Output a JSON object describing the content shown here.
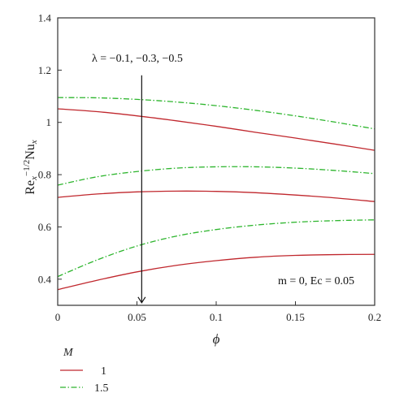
{
  "chart_data": {
    "type": "line",
    "xlim": [
      0,
      0.2
    ],
    "ylim": [
      0.3,
      1.4
    ],
    "x_ticks": [
      "0",
      "0.05",
      "0.1",
      "0.15",
      "0.2"
    ],
    "y_ticks": [
      "1.4",
      "1.2",
      "1",
      "0.8",
      "0.6",
      "0.4"
    ],
    "y_tick_values": [
      1.4,
      1.2,
      1.0,
      0.8,
      0.6,
      0.4
    ],
    "x_tick_values": [
      0,
      0.05,
      0.1,
      0.15,
      0.2
    ],
    "xlabel": "ϕ",
    "ylabel": "Re_x^(−1/2) Nu_x",
    "ylabel_parts": {
      "re": "Re",
      "re_sub": "x",
      "sup": "−1/2",
      "nu": "Nu",
      "nu_sub": "x"
    },
    "legend": {
      "title": "M",
      "placement": "bottom-left",
      "entries": [
        "1",
        "1.5"
      ]
    },
    "colors": {
      "M1": "#c0272d",
      "M15": "#2db52d",
      "arrow": "#111111",
      "axes": "#333333"
    },
    "annotations": {
      "lambda": "λ = −0.1, −0.3, −0.5",
      "params": "m = 0, Ec = 0.05",
      "arrow_x": 0.053,
      "arrow_y_from": 1.18,
      "arrow_y_to": 0.31
    },
    "series": [
      {
        "group": "1",
        "lambda": "-0.1",
        "style": "solid",
        "x": [
          0,
          0.025,
          0.05,
          0.075,
          0.1,
          0.125,
          0.15,
          0.175,
          0.2
        ],
        "y": [
          1.052,
          1.041,
          1.025,
          1.006,
          0.985,
          0.962,
          0.94,
          0.917,
          0.893
        ]
      },
      {
        "group": "1",
        "lambda": "-0.3",
        "style": "solid",
        "x": [
          0,
          0.025,
          0.05,
          0.075,
          0.1,
          0.125,
          0.15,
          0.175,
          0.2
        ],
        "y": [
          0.713,
          0.726,
          0.734,
          0.737,
          0.736,
          0.731,
          0.722,
          0.711,
          0.697
        ]
      },
      {
        "group": "1",
        "lambda": "-0.5",
        "style": "solid",
        "x": [
          0,
          0.025,
          0.05,
          0.075,
          0.1,
          0.125,
          0.15,
          0.175,
          0.2
        ],
        "y": [
          0.36,
          0.396,
          0.428,
          0.453,
          0.471,
          0.484,
          0.491,
          0.494,
          0.495
        ]
      },
      {
        "group": "1.5",
        "lambda": "-0.1",
        "style": "dashdot",
        "x": [
          0,
          0.025,
          0.05,
          0.075,
          0.1,
          0.125,
          0.15,
          0.175,
          0.2
        ],
        "y": [
          1.095,
          1.094,
          1.088,
          1.078,
          1.064,
          1.046,
          1.025,
          1.001,
          0.975
        ]
      },
      {
        "group": "1.5",
        "lambda": "-0.3",
        "style": "dashdot",
        "x": [
          0,
          0.025,
          0.05,
          0.075,
          0.1,
          0.125,
          0.15,
          0.175,
          0.2
        ],
        "y": [
          0.76,
          0.792,
          0.812,
          0.825,
          0.83,
          0.83,
          0.825,
          0.816,
          0.804
        ]
      },
      {
        "group": "1.5",
        "lambda": "-0.5",
        "style": "dashdot",
        "x": [
          0,
          0.025,
          0.05,
          0.075,
          0.1,
          0.125,
          0.15,
          0.175,
          0.2
        ],
        "y": [
          0.41,
          0.474,
          0.527,
          0.565,
          0.59,
          0.607,
          0.618,
          0.624,
          0.627
        ]
      }
    ]
  }
}
